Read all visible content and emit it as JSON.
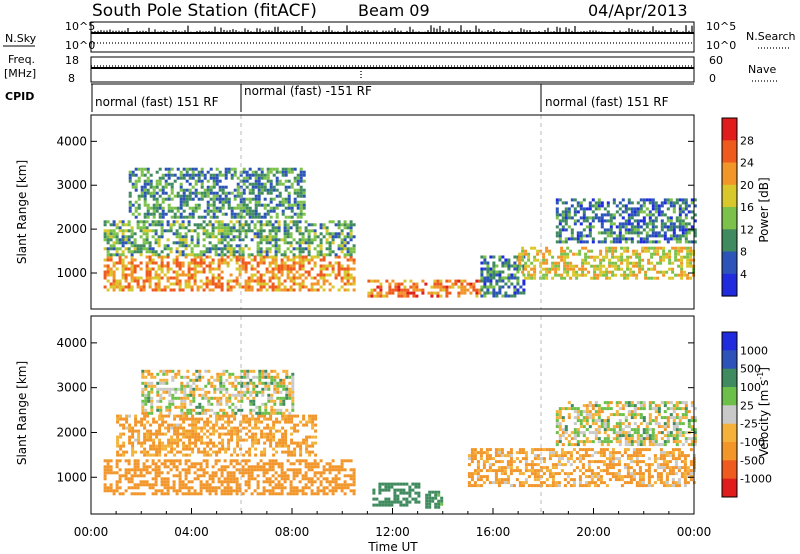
{
  "header": {
    "title": "South Pole Station (fitACF)",
    "beam": "Beam 09",
    "date": "04/Apr/2013"
  },
  "panels": {
    "nsky": {
      "label": "N.Sky",
      "right_label": "N.Search",
      "left_ticks": [
        "10^5",
        "10^0"
      ],
      "right_ticks": [
        "10^5",
        "10^0"
      ]
    },
    "freq": {
      "label_line1": "Freq.",
      "label_line2": "[MHz]",
      "left_ticks": [
        "18",
        "8"
      ],
      "right_label": "Nave",
      "right_ticks": [
        "60",
        "0"
      ]
    },
    "cpid": {
      "label": "CPID",
      "segments": [
        {
          "start": 0,
          "end": 6,
          "text": "normal (fast) 151 RF"
        },
        {
          "start": 6,
          "end": 18,
          "text": "normal (fast) -151 RF"
        },
        {
          "start": 18,
          "end": 24,
          "text": "normal (fast) 151 RF"
        }
      ]
    }
  },
  "colors": {
    "power": [
      "#1f2bdc",
      "#2c54b8",
      "#3f8a5e",
      "#7cc24a",
      "#d8c82c",
      "#f2962a",
      "#ef5a1e",
      "#e01c1c"
    ],
    "velocity": [
      "#e01c1c",
      "#ef5a1e",
      "#f2962a",
      "#f4b23a",
      "#c9c9c9",
      "#6cc04a",
      "#3f8a5e",
      "#2c54b8",
      "#1f2bdc"
    ]
  },
  "chart_data": [
    {
      "type": "heatmap",
      "name": "power",
      "ylabel": "Slant Range [km]",
      "xlim": [
        0,
        24
      ],
      "ylim": [
        180,
        4600
      ],
      "yticks": [
        "1000",
        "2000",
        "3000",
        "4000"
      ],
      "colorbar": {
        "label": "Power [dB]",
        "ticks": [
          "4",
          "8",
          "12",
          "16",
          "20",
          "24",
          "28"
        ],
        "range": [
          0,
          32
        ]
      },
      "bands": [
        {
          "x": [
            0.5,
            10.5
          ],
          "y": [
            600,
            1400
          ],
          "value": 22
        },
        {
          "x": [
            0.5,
            10.5
          ],
          "y": [
            1400,
            2200
          ],
          "value": 12
        },
        {
          "x": [
            1.5,
            8.5
          ],
          "y": [
            2300,
            3400
          ],
          "value": 10
        },
        {
          "x": [
            11.0,
            15.5
          ],
          "y": [
            500,
            850
          ],
          "value": 24
        },
        {
          "x": [
            15.5,
            17.2
          ],
          "y": [
            500,
            1400
          ],
          "value": 8
        },
        {
          "x": [
            17.0,
            24.0
          ],
          "y": [
            900,
            1600
          ],
          "value": 18
        },
        {
          "x": [
            18.5,
            24.0
          ],
          "y": [
            1700,
            2700
          ],
          "value": 8
        }
      ]
    },
    {
      "type": "heatmap",
      "name": "velocity",
      "ylabel": "Slant Range [km]",
      "xlabel": "Time UT",
      "xlim": [
        0,
        24
      ],
      "ylim": [
        180,
        4600
      ],
      "xticks": [
        "00:00",
        "04:00",
        "08:00",
        "12:00",
        "16:00",
        "20:00",
        "00:00"
      ],
      "yticks": [
        "1000",
        "2000",
        "3000",
        "4000"
      ],
      "colorbar": {
        "label": "Velocity [m s^-1]",
        "ticks": [
          "1000",
          "500",
          "100",
          "25",
          "-25",
          "-100",
          "-500",
          "-1000"
        ]
      },
      "bands": [
        {
          "x": [
            0.5,
            10.5
          ],
          "y": [
            600,
            1400
          ],
          "value": -300
        },
        {
          "x": [
            1.0,
            9.0
          ],
          "y": [
            1500,
            2400
          ],
          "value": -150
        },
        {
          "x": [
            2.0,
            8.0
          ],
          "y": [
            2400,
            3400
          ],
          "value": 0
        },
        {
          "x": [
            11.2,
            13.0
          ],
          "y": [
            350,
            880
          ],
          "value": 300
        },
        {
          "x": [
            13.3,
            14.0
          ],
          "y": [
            350,
            700
          ],
          "value": 200
        },
        {
          "x": [
            15.0,
            24.0
          ],
          "y": [
            800,
            1650
          ],
          "value": -120
        },
        {
          "x": [
            18.5,
            24.0
          ],
          "y": [
            1700,
            2700
          ],
          "value": 0
        }
      ]
    }
  ]
}
